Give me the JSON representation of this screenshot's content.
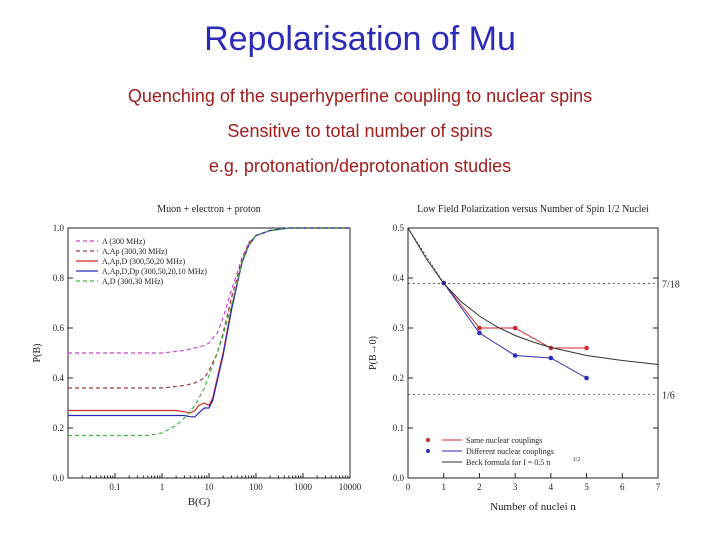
{
  "slide": {
    "title": "Repolarisation of Mu",
    "lines": [
      "Quenching of the superhyperfine coupling to nuclear spins",
      "Sensitive to total number of spins",
      "e.g. protonation/deprotonation studies"
    ]
  },
  "chart_data": [
    {
      "type": "line",
      "title": "Muon + electron + proton",
      "xlabel": "B(G)",
      "ylabel": "P(B)",
      "xscale": "log",
      "xlim": [
        0.01,
        10000
      ],
      "ylim": [
        0,
        1
      ],
      "xticks": [
        "0.1",
        "1",
        "10",
        "100",
        "1000",
        "10000"
      ],
      "yticks": [
        "0.0",
        "0.2",
        "0.4",
        "0.6",
        "0.8",
        "1.0"
      ],
      "legend_position": "top-left",
      "series": [
        {
          "name": "A (300 MHz)",
          "color": "#cc44cc",
          "dash": "4,3",
          "x": [
            0.01,
            0.1,
            1,
            3,
            5,
            8,
            10,
            15,
            20,
            30,
            50,
            70,
            100,
            200,
            500,
            10000
          ],
          "y": [
            0.5,
            0.5,
            0.5,
            0.51,
            0.52,
            0.53,
            0.54,
            0.58,
            0.64,
            0.75,
            0.88,
            0.94,
            0.97,
            0.99,
            1.0,
            1.0
          ]
        },
        {
          "name": "A,Ap (300,30 MHz)",
          "color": "#a03a3a",
          "dash": "4,3",
          "x": [
            0.01,
            0.1,
            1,
            3,
            5,
            8,
            10,
            15,
            20,
            30,
            50,
            70,
            100,
            200,
            500,
            10000
          ],
          "y": [
            0.36,
            0.36,
            0.36,
            0.37,
            0.38,
            0.4,
            0.43,
            0.5,
            0.58,
            0.72,
            0.87,
            0.94,
            0.97,
            0.99,
            1.0,
            1.0
          ]
        },
        {
          "name": "A,Ap,D (300,50,20 MHz)",
          "color": "#d02828",
          "dash": "",
          "x": [
            0.01,
            0.1,
            1,
            2,
            3,
            4,
            5,
            6,
            8,
            10,
            12,
            15,
            20,
            30,
            50,
            70,
            100,
            200,
            500,
            10000
          ],
          "y": [
            0.27,
            0.27,
            0.27,
            0.27,
            0.265,
            0.26,
            0.27,
            0.29,
            0.3,
            0.29,
            0.32,
            0.4,
            0.5,
            0.68,
            0.86,
            0.93,
            0.97,
            0.99,
            1.0,
            1.0
          ]
        },
        {
          "name": "A,Ap,D,Dp (300,50,20,10 MHz)",
          "color": "#2a2ab8",
          "dash": "",
          "x": [
            0.01,
            0.1,
            1,
            2,
            3,
            4,
            5,
            6,
            8,
            10,
            12,
            15,
            20,
            30,
            50,
            70,
            100,
            200,
            500,
            10000
          ],
          "y": [
            0.25,
            0.25,
            0.25,
            0.25,
            0.25,
            0.245,
            0.245,
            0.26,
            0.28,
            0.28,
            0.31,
            0.39,
            0.49,
            0.67,
            0.86,
            0.93,
            0.97,
            0.99,
            1.0,
            1.0
          ]
        },
        {
          "name": "A,D (300,30 MHz)",
          "color": "#3fb83f",
          "dash": "4,3",
          "x": [
            0.01,
            0.1,
            0.5,
            1,
            2,
            3,
            5,
            8,
            10,
            15,
            20,
            30,
            50,
            70,
            100,
            200,
            500,
            10000
          ],
          "y": [
            0.17,
            0.17,
            0.17,
            0.18,
            0.21,
            0.24,
            0.29,
            0.36,
            0.41,
            0.5,
            0.57,
            0.69,
            0.86,
            0.93,
            0.97,
            0.99,
            1.0,
            1.0
          ]
        }
      ]
    },
    {
      "type": "line",
      "title": "Low Field Polarization versus Number of Spin 1/2 Nuclei",
      "xlabel": "Number of nuclei n",
      "ylabel": "P(B→0)",
      "xlim": [
        0,
        7
      ],
      "ylim": [
        0,
        0.5
      ],
      "xticks": [
        "0",
        "1",
        "2",
        "3",
        "4",
        "5",
        "6",
        "7"
      ],
      "yticks": [
        "0.0",
        "0.1",
        "0.2",
        "0.3",
        "0.4",
        "0.5"
      ],
      "legend_position": "bottom-left",
      "reference_lines": [
        {
          "label": "7/18",
          "y": 0.3889
        },
        {
          "label": "1/6",
          "y": 0.1667
        }
      ],
      "series": [
        {
          "name": "Same nuclear couplings",
          "color": "#d02828",
          "marker": "circle",
          "x": [
            1,
            2,
            3,
            4,
            5
          ],
          "y": [
            0.39,
            0.3,
            0.3,
            0.26,
            0.26
          ]
        },
        {
          "name": "Different nuclear couplings",
          "color": "#2a2ab8",
          "marker": "circle",
          "x": [
            1,
            2,
            3,
            4,
            5
          ],
          "y": [
            0.39,
            0.29,
            0.245,
            0.24,
            0.2
          ]
        },
        {
          "name": "Beck formula for I = 0.5 n",
          "name_superscript": "1/2",
          "color": "#333333",
          "marker": "none",
          "x": [
            0,
            0.5,
            1,
            1.5,
            2,
            2.5,
            3,
            3.5,
            4,
            5,
            6,
            7
          ],
          "y": [
            0.5,
            0.44,
            0.389,
            0.352,
            0.324,
            0.302,
            0.285,
            0.272,
            0.261,
            0.245,
            0.235,
            0.227
          ]
        }
      ]
    }
  ]
}
